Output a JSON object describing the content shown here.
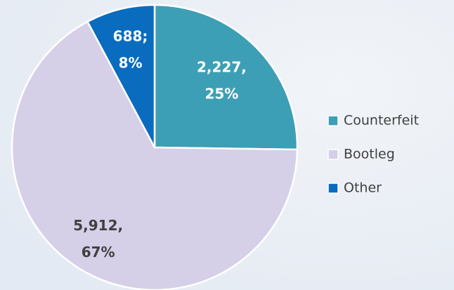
{
  "chart_data": {
    "type": "pie",
    "categories": [
      "Counterfeit",
      "Bootleg",
      "Other"
    ],
    "values": [
      2227,
      5912,
      688
    ],
    "value_labels": [
      [
        "2,227,",
        "25%"
      ],
      [
        "5,912,",
        "67%"
      ],
      [
        "688;",
        "8%"
      ]
    ],
    "colors": [
      "#3d9fb5",
      "#d5cfe7",
      "#0a6cbf"
    ],
    "label_colors": [
      "#ffffff",
      "#404040",
      "#ffffff"
    ],
    "legend": "right"
  }
}
